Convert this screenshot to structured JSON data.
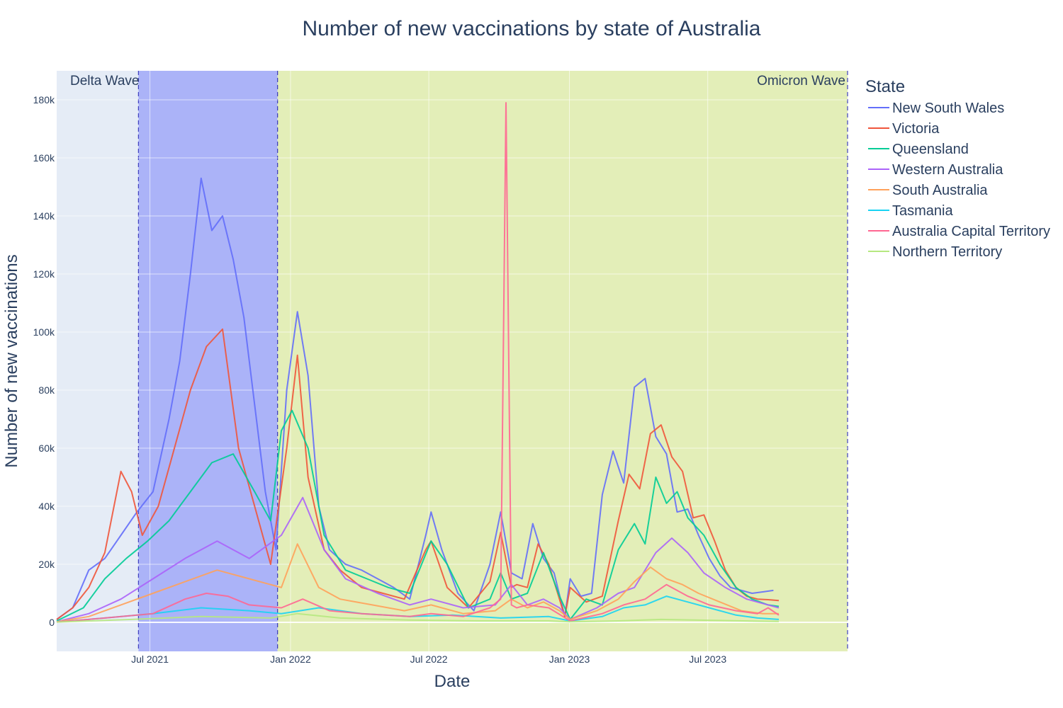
{
  "chart_data": {
    "type": "line",
    "title": "Number of new vaccinations by state of Australia",
    "xlabel": "Date",
    "ylabel": "Number of new vaccinations",
    "xlim": [
      "2021-03-01",
      "2023-12-31"
    ],
    "ylim": [
      -10000,
      190000
    ],
    "x_ticks": [
      {
        "date": "2021-07-01",
        "label": "Jul 2021"
      },
      {
        "date": "2022-01-01",
        "label": "Jan 2022"
      },
      {
        "date": "2022-07-01",
        "label": "Jul 2022"
      },
      {
        "date": "2023-01-01",
        "label": "Jan 2023"
      },
      {
        "date": "2023-07-01",
        "label": "Jul 2023"
      }
    ],
    "y_ticks": [
      {
        "value": 0,
        "label": "0"
      },
      {
        "value": 20000,
        "label": "20k"
      },
      {
        "value": 40000,
        "label": "40k"
      },
      {
        "value": 60000,
        "label": "60k"
      },
      {
        "value": 80000,
        "label": "80k"
      },
      {
        "value": 100000,
        "label": "100k"
      },
      {
        "value": 120000,
        "label": "120k"
      },
      {
        "value": 140000,
        "label": "140k"
      },
      {
        "value": 160000,
        "label": "160k"
      },
      {
        "value": 180000,
        "label": "180k"
      }
    ],
    "grid": true,
    "legend_title": "State",
    "legend_position": "right",
    "bands": [
      {
        "label": "Delta Wave",
        "start": "2021-06-16",
        "end": "2021-12-15",
        "color": "#636efa",
        "opacity": 0.45,
        "label_position": "top-left"
      },
      {
        "label": "Omicron Wave",
        "start": "2021-12-15",
        "end": "2023-12-31",
        "color": "#e1f07a",
        "opacity": 0.5,
        "label_position": "top-right"
      }
    ],
    "series": [
      {
        "name": "New South Wales",
        "color": "#636efa",
        "x": [
          "2021-03-01",
          "2021-03-22",
          "2021-04-12",
          "2021-05-03",
          "2021-05-24",
          "2021-06-14",
          "2021-07-05",
          "2021-07-26",
          "2021-08-09",
          "2021-08-23",
          "2021-09-06",
          "2021-09-20",
          "2021-10-04",
          "2021-10-18",
          "2021-11-01",
          "2021-11-15",
          "2021-11-29",
          "2021-12-13",
          "2021-12-27",
          "2022-01-10",
          "2022-01-24",
          "2022-02-07",
          "2022-02-21",
          "2022-03-14",
          "2022-04-04",
          "2022-04-25",
          "2022-05-16",
          "2022-06-06",
          "2022-06-27",
          "2022-07-04",
          "2022-07-18",
          "2022-08-08",
          "2022-08-29",
          "2022-09-19",
          "2022-10-03",
          "2022-10-17",
          "2022-10-31",
          "2022-11-14",
          "2022-11-28",
          "2022-12-12",
          "2022-12-26",
          "2023-01-02",
          "2023-01-16",
          "2023-01-30",
          "2023-02-13",
          "2023-02-27",
          "2023-03-13",
          "2023-03-27",
          "2023-04-10",
          "2023-04-24",
          "2023-05-08",
          "2023-05-22",
          "2023-06-05",
          "2023-06-19",
          "2023-07-03",
          "2023-07-17",
          "2023-07-31",
          "2023-08-14",
          "2023-08-28",
          "2023-09-11",
          "2023-09-25"
        ],
        "values": [
          1000,
          5000,
          18000,
          22000,
          30000,
          38000,
          45000,
          70000,
          90000,
          120000,
          153000,
          135000,
          140000,
          125000,
          105000,
          75000,
          45000,
          25000,
          80000,
          107000,
          85000,
          40000,
          25000,
          20000,
          18000,
          15000,
          12000,
          8000,
          30000,
          38000,
          25000,
          10000,
          4000,
          20000,
          38000,
          17000,
          15000,
          34000,
          22000,
          17000,
          2000,
          15000,
          9000,
          10000,
          44000,
          59000,
          48000,
          81000,
          84000,
          64000,
          58000,
          38000,
          39000,
          30000,
          22000,
          16000,
          12000,
          11000,
          10000,
          10500,
          11000
        ]
      },
      {
        "name": "Victoria",
        "color": "#ef553b",
        "x": [
          "2021-03-01",
          "2021-03-22",
          "2021-04-12",
          "2021-05-03",
          "2021-05-24",
          "2021-06-07",
          "2021-06-21",
          "2021-07-12",
          "2021-08-02",
          "2021-08-23",
          "2021-09-13",
          "2021-10-04",
          "2021-10-25",
          "2021-11-15",
          "2021-12-06",
          "2021-12-27",
          "2022-01-10",
          "2022-01-24",
          "2022-02-14",
          "2022-03-07",
          "2022-04-04",
          "2022-05-02",
          "2022-05-30",
          "2022-06-27",
          "2022-07-04",
          "2022-07-25",
          "2022-08-22",
          "2022-09-19",
          "2022-10-03",
          "2022-10-17",
          "2022-10-24",
          "2022-11-07",
          "2022-11-21",
          "2022-12-05",
          "2022-12-26",
          "2023-01-02",
          "2023-01-23",
          "2023-02-13",
          "2023-03-06",
          "2023-03-20",
          "2023-04-03",
          "2023-04-17",
          "2023-05-01",
          "2023-05-15",
          "2023-05-29",
          "2023-06-12",
          "2023-06-26",
          "2023-07-10",
          "2023-07-24",
          "2023-08-07",
          "2023-08-21",
          "2023-09-04",
          "2023-09-18",
          "2023-10-02"
        ],
        "values": [
          1000,
          5000,
          12000,
          24000,
          52000,
          45000,
          30000,
          40000,
          60000,
          80000,
          95000,
          101000,
          60000,
          40000,
          20000,
          60000,
          92000,
          50000,
          25000,
          18000,
          12000,
          10000,
          8000,
          25000,
          28000,
          12000,
          5000,
          14000,
          31000,
          12000,
          13000,
          12000,
          27000,
          20000,
          2000,
          12000,
          7000,
          9000,
          35000,
          51000,
          46000,
          65000,
          68000,
          57000,
          52000,
          36000,
          37000,
          28000,
          18000,
          12000,
          9000,
          8000,
          7800,
          7500
        ]
      },
      {
        "name": "Queensland",
        "color": "#00cc96",
        "x": [
          "2021-03-01",
          "2021-04-05",
          "2021-05-03",
          "2021-05-31",
          "2021-06-28",
          "2021-07-26",
          "2021-08-23",
          "2021-09-20",
          "2021-10-18",
          "2021-11-15",
          "2021-12-06",
          "2021-12-20",
          "2022-01-03",
          "2022-01-24",
          "2022-02-14",
          "2022-03-14",
          "2022-04-11",
          "2022-05-09",
          "2022-06-06",
          "2022-07-04",
          "2022-07-25",
          "2022-08-22",
          "2022-09-19",
          "2022-10-03",
          "2022-10-17",
          "2022-11-07",
          "2022-11-28",
          "2022-12-19",
          "2023-01-02",
          "2023-01-23",
          "2023-02-13",
          "2023-03-06",
          "2023-03-27",
          "2023-04-10",
          "2023-04-24",
          "2023-05-08",
          "2023-05-22",
          "2023-06-05",
          "2023-06-26",
          "2023-07-17",
          "2023-08-07",
          "2023-08-28",
          "2023-09-18",
          "2023-10-02"
        ],
        "values": [
          500,
          5000,
          15000,
          22000,
          28000,
          35000,
          45000,
          55000,
          58000,
          45000,
          35000,
          66000,
          73000,
          60000,
          30000,
          18000,
          15000,
          12000,
          10000,
          28000,
          20000,
          5000,
          8000,
          17000,
          8000,
          10000,
          24000,
          9000,
          1000,
          8000,
          6000,
          25000,
          34000,
          27000,
          50000,
          41000,
          45000,
          36000,
          30000,
          20000,
          12000,
          8000,
          6000,
          5500
        ]
      },
      {
        "name": "Western Australia",
        "color": "#ab63fa",
        "x": [
          "2021-03-01",
          "2021-04-12",
          "2021-05-24",
          "2021-07-05",
          "2021-08-16",
          "2021-09-27",
          "2021-11-08",
          "2021-12-20",
          "2022-01-17",
          "2022-02-14",
          "2022-03-14",
          "2022-04-25",
          "2022-06-06",
          "2022-07-04",
          "2022-08-15",
          "2022-09-26",
          "2022-10-17",
          "2022-11-07",
          "2022-11-28",
          "2022-12-19",
          "2023-01-02",
          "2023-02-06",
          "2023-03-06",
          "2023-03-27",
          "2023-04-24",
          "2023-05-15",
          "2023-06-05",
          "2023-06-26",
          "2023-07-24",
          "2023-08-21",
          "2023-09-18",
          "2023-10-02"
        ],
        "values": [
          200,
          3000,
          8000,
          15000,
          22000,
          28000,
          22000,
          30000,
          43000,
          25000,
          15000,
          10000,
          6000,
          8000,
          5000,
          6000,
          13000,
          6000,
          8000,
          5000,
          1000,
          5000,
          10000,
          12000,
          24000,
          29000,
          24000,
          17000,
          12000,
          8000,
          6000,
          5000
        ]
      },
      {
        "name": "South Australia",
        "color": "#ffa15a",
        "x": [
          "2021-03-01",
          "2021-04-12",
          "2021-05-24",
          "2021-07-05",
          "2021-08-16",
          "2021-09-27",
          "2021-11-08",
          "2021-12-20",
          "2022-01-10",
          "2022-02-07",
          "2022-03-07",
          "2022-04-18",
          "2022-05-30",
          "2022-07-04",
          "2022-08-15",
          "2022-09-26",
          "2022-10-17",
          "2022-11-07",
          "2022-11-28",
          "2022-12-19",
          "2023-01-02",
          "2023-02-06",
          "2023-03-06",
          "2023-03-27",
          "2023-04-17",
          "2023-05-08",
          "2023-05-29",
          "2023-06-19",
          "2023-07-17",
          "2023-08-14",
          "2023-09-11",
          "2023-10-02"
        ],
        "values": [
          200,
          2000,
          6000,
          10000,
          14000,
          18000,
          15000,
          12000,
          27000,
          12000,
          8000,
          6000,
          4000,
          6000,
          3000,
          4000,
          8000,
          5000,
          7000,
          4000,
          1000,
          4000,
          8000,
          14000,
          19000,
          15000,
          13000,
          10000,
          7000,
          4000,
          3000,
          3000
        ]
      },
      {
        "name": "Tasmania",
        "color": "#19d3f3",
        "x": [
          "2021-03-01",
          "2021-05-03",
          "2021-07-05",
          "2021-09-06",
          "2021-11-08",
          "2021-12-20",
          "2022-02-07",
          "2022-04-04",
          "2022-06-06",
          "2022-08-01",
          "2022-10-03",
          "2022-12-05",
          "2023-01-02",
          "2023-02-13",
          "2023-03-13",
          "2023-04-10",
          "2023-05-08",
          "2023-06-05",
          "2023-07-03",
          "2023-08-07",
          "2023-09-04",
          "2023-10-02"
        ],
        "values": [
          100,
          1500,
          3000,
          5000,
          4000,
          3000,
          5000,
          3000,
          2000,
          2500,
          1500,
          2000,
          500,
          2000,
          5000,
          6000,
          9000,
          7000,
          5000,
          2500,
          1500,
          1000
        ]
      },
      {
        "name": "Australia Capital Territory",
        "color": "#ff6692",
        "x": [
          "2021-03-01",
          "2021-05-03",
          "2021-07-05",
          "2021-08-16",
          "2021-09-13",
          "2021-10-11",
          "2021-11-08",
          "2021-12-20",
          "2022-01-17",
          "2022-02-21",
          "2022-04-04",
          "2022-06-06",
          "2022-07-04",
          "2022-08-15",
          "2022-09-19",
          "2022-10-03",
          "2022-10-10",
          "2022-10-17",
          "2022-10-24",
          "2022-11-07",
          "2022-12-05",
          "2023-01-02",
          "2023-02-13",
          "2023-03-13",
          "2023-04-10",
          "2023-05-08",
          "2023-06-05",
          "2023-07-03",
          "2023-08-07",
          "2023-09-04",
          "2023-09-18",
          "2023-10-02"
        ],
        "values": [
          100,
          1500,
          3000,
          8000,
          10000,
          9000,
          6000,
          5000,
          8000,
          4000,
          3000,
          2000,
          3000,
          2000,
          5000,
          8000,
          179000,
          6000,
          5000,
          6000,
          5000,
          500,
          3000,
          6000,
          8000,
          13000,
          9000,
          6000,
          4000,
          3000,
          5000,
          2500
        ]
      },
      {
        "name": "Northern Territory",
        "color": "#b6e880",
        "x": [
          "2021-03-01",
          "2021-06-07",
          "2021-09-06",
          "2021-12-06",
          "2022-01-10",
          "2022-03-07",
          "2022-06-06",
          "2022-09-05",
          "2022-12-05",
          "2023-01-02",
          "2023-03-06",
          "2023-05-01",
          "2023-07-03",
          "2023-09-04",
          "2023-10-02"
        ],
        "values": [
          100,
          1000,
          2000,
          1500,
          3000,
          1500,
          800,
          500,
          500,
          200,
          500,
          1000,
          700,
          400,
          300
        ]
      }
    ]
  }
}
